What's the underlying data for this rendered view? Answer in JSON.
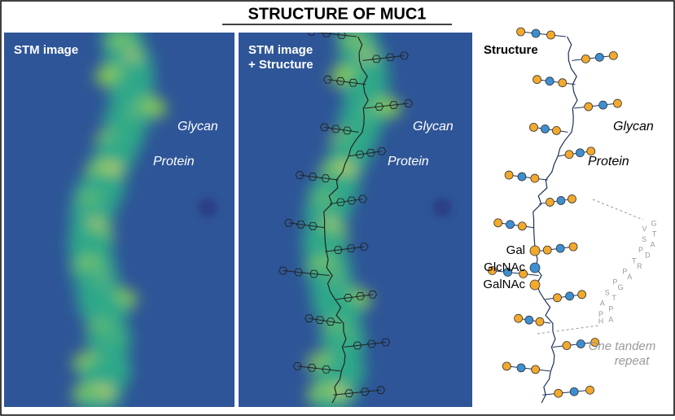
{
  "title": "STRUCTURE OF MUC1",
  "panels": [
    {
      "label": "STM image"
    },
    {
      "label_lines": [
        "STM image",
        "+ Structure"
      ]
    },
    {
      "label": "Structure"
    }
  ],
  "annotations": {
    "glycan": "Glycan",
    "protein": "Protein"
  },
  "legend": [
    "Gal",
    "GlcNAc",
    "GalNAc"
  ],
  "tandem_repeat": {
    "label_lines": [
      "One tandem",
      "repeat"
    ],
    "sequence": [
      "H",
      "G",
      "V",
      "T",
      "S",
      "A",
      "P",
      "D",
      "T",
      "R",
      "P",
      "A",
      "P",
      "G",
      "S",
      "T",
      "A",
      "P",
      "P",
      "A"
    ]
  }
}
